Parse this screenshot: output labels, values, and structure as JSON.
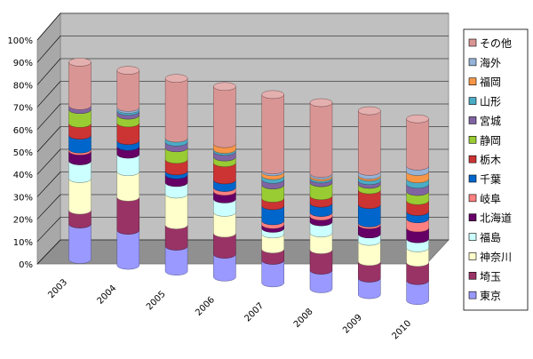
{
  "chart_data": {
    "type": "bar",
    "stacked": true,
    "three_d": true,
    "percent_stacked": true,
    "grid": true,
    "legend_position": "right",
    "ylim": [
      0,
      100
    ],
    "y_ticks": [
      "0%",
      "10%",
      "20%",
      "30%",
      "40%",
      "50%",
      "60%",
      "70%",
      "80%",
      "90%",
      "100%"
    ],
    "categories": [
      "2003",
      "2004",
      "2005",
      "2006",
      "2007",
      "2008",
      "2009",
      "2010"
    ],
    "series": [
      {
        "name": "東京",
        "color": "#9999ff",
        "values": [
          18,
          18,
          13,
          12,
          12,
          10,
          9,
          11
        ]
      },
      {
        "name": "埼玉",
        "color": "#993366",
        "values": [
          7,
          17,
          11,
          11,
          6,
          11,
          9,
          10
        ]
      },
      {
        "name": "神奈川",
        "color": "#ffffcc",
        "values": [
          16,
          13,
          16,
          11,
          8,
          9,
          11,
          8
        ]
      },
      {
        "name": "福島",
        "color": "#ccffff",
        "values": [
          9,
          9,
          6,
          7,
          3,
          6,
          4,
          5
        ]
      },
      {
        "name": "北海道",
        "color": "#660066",
        "values": [
          5,
          4,
          4,
          4,
          2,
          3,
          5,
          6
        ]
      },
      {
        "name": "岐阜",
        "color": "#ff8080",
        "values": [
          1,
          0,
          0,
          2,
          2,
          2,
          1,
          5
        ]
      },
      {
        "name": "千葉",
        "color": "#0066cc",
        "values": [
          7,
          3,
          2,
          4,
          8,
          5,
          10,
          4
        ]
      },
      {
        "name": "栃木",
        "color": "#cc3333",
        "values": [
          6,
          9,
          6,
          9,
          4,
          4,
          8,
          6
        ]
      },
      {
        "name": "静岡",
        "color": "#99cc33",
        "values": [
          7,
          4,
          6,
          3,
          7,
          7,
          3,
          5
        ]
      },
      {
        "name": "宮城",
        "color": "#8064a2",
        "values": [
          2,
          2,
          3,
          3,
          3,
          2,
          2,
          4
        ]
      },
      {
        "name": "山形",
        "color": "#4bacc6",
        "values": [
          0,
          1,
          2,
          1,
          2,
          1,
          2,
          3
        ]
      },
      {
        "name": "福岡",
        "color": "#f79646",
        "values": [
          0,
          0,
          0,
          3,
          2,
          1,
          1,
          4
        ]
      },
      {
        "name": "海外",
        "color": "#95b3d7",
        "values": [
          0,
          1,
          0,
          0,
          1,
          1,
          2,
          3
        ]
      },
      {
        "name": "その他",
        "color": "#d99594",
        "values": [
          22,
          19,
          31,
          30,
          40,
          38,
          33,
          26
        ]
      }
    ]
  }
}
